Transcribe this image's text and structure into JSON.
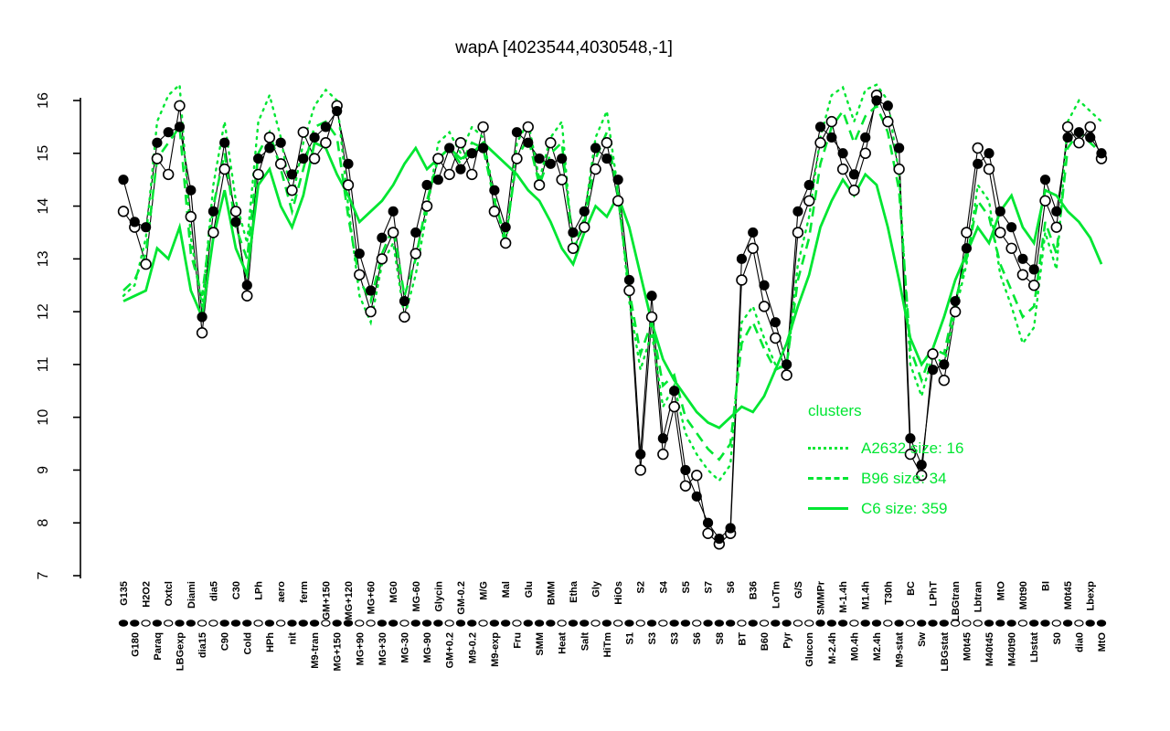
{
  "title": "wapA [4023544,4030548,-1]",
  "colors": {
    "cluster_green": "#00e632",
    "series_black": "#000000",
    "background": "#ffffff"
  },
  "legend": {
    "title": "clusters",
    "entries": [
      {
        "label": "A2632 size: 16",
        "style": "dotted"
      },
      {
        "label": "B96 size: 34",
        "style": "dashed"
      },
      {
        "label": "C6 size: 359",
        "style": "solid"
      }
    ]
  },
  "chart_data": {
    "type": "line",
    "title": "wapA [4023544,4030548,-1]",
    "xlabel": "",
    "ylabel": "",
    "ylim": [
      7,
      16
    ],
    "yticks": [
      7,
      8,
      9,
      10,
      11,
      12,
      13,
      14,
      15,
      16
    ],
    "grid": false,
    "legend_position": "right-middle",
    "categories": [
      "G135",
      "G180",
      "H2O2",
      "Paraq",
      "Oxtcl",
      "LBGexp",
      "Diami",
      "dia15",
      "dia5",
      "C90",
      "C30",
      "Cold",
      "LPh",
      "HPh",
      "aero",
      "nit",
      "ferm",
      "M9-tran",
      "GM+150",
      "MG+150",
      "MG+120",
      "MG+90",
      "MG+60",
      "MG+30",
      "MG0",
      "MG-30",
      "MG-60",
      "MG-90",
      "Glycin",
      "GM+0.2",
      "GM-0.2",
      "M9-0.2",
      "M/G",
      "M9-exp",
      "Mal",
      "Fru",
      "Glu",
      "SMM",
      "BMM",
      "Heat",
      "Etha",
      "Salt",
      "Gly",
      "HiTm",
      "HiOs",
      "S1",
      "S2",
      "S3",
      "S4",
      "S3",
      "S5",
      "S6",
      "S7",
      "S8",
      "S6",
      "BT",
      "B36",
      "B60",
      "LoTm",
      "Pyr",
      "G/S",
      "Glucon",
      "SMMPr",
      "M-2.4h",
      "M-1.4h",
      "M0.4h",
      "M1.4h",
      "M2.4h",
      "T30h",
      "M9-stat",
      "BC",
      "Sw",
      "LPhT",
      "LBGstat",
      "LBGtran",
      "M0t45",
      "Lbtran",
      "M40t45",
      "MtO",
      "M40t90",
      "M0t90",
      "Lbstat",
      "BI",
      "S0",
      "M0t45",
      "dia0",
      "Lbexp",
      "MtO"
    ],
    "axis_markers": "ffofoffoofffofofffoffooffofffoffoffofffoffofofofoffofffofoffoofffoffofofffooofffoffofoff",
    "series": [
      {
        "name": "wapA profile (filled points)",
        "marker": "filled-circle",
        "color": "#000000",
        "values": [
          14.5,
          13.7,
          13.6,
          15.2,
          15.4,
          15.5,
          14.3,
          11.9,
          13.9,
          15.2,
          13.7,
          12.5,
          14.9,
          15.1,
          15.2,
          14.6,
          14.9,
          15.3,
          15.5,
          15.8,
          14.8,
          13.1,
          12.4,
          13.4,
          13.9,
          12.2,
          13.5,
          14.4,
          14.5,
          15.1,
          14.7,
          15.0,
          15.1,
          14.3,
          13.6,
          15.4,
          15.2,
          14.9,
          14.8,
          14.9,
          13.5,
          13.9,
          15.1,
          14.9,
          14.5,
          12.6,
          9.3,
          12.3,
          9.6,
          10.5,
          9.0,
          8.5,
          8.0,
          7.7,
          7.9,
          13.0,
          13.5,
          12.5,
          11.8,
          11.0,
          13.9,
          14.4,
          15.5,
          15.3,
          15.0,
          14.6,
          15.3,
          16.0,
          15.9,
          15.1,
          9.6,
          9.1,
          10.9,
          11.0,
          12.2,
          13.2,
          14.8,
          15.0,
          13.9,
          13.6,
          13.0,
          12.8,
          14.5,
          13.9,
          15.3,
          15.4,
          15.3,
          15.0
        ]
      },
      {
        "name": "wapA profile (open points)",
        "marker": "open-circle",
        "color": "#000000",
        "values": [
          13.9,
          13.6,
          12.9,
          14.9,
          14.6,
          15.9,
          13.8,
          11.6,
          13.5,
          14.7,
          13.9,
          12.3,
          14.6,
          15.3,
          14.8,
          14.3,
          15.4,
          14.9,
          15.2,
          15.9,
          14.4,
          12.7,
          12.0,
          13.0,
          13.5,
          11.9,
          13.1,
          14.0,
          14.9,
          14.6,
          15.2,
          14.6,
          15.5,
          13.9,
          13.3,
          14.9,
          15.5,
          14.4,
          15.2,
          14.5,
          13.2,
          13.6,
          14.7,
          15.2,
          14.1,
          12.4,
          9.0,
          11.9,
          9.3,
          10.2,
          8.7,
          8.9,
          7.8,
          7.6,
          7.8,
          12.6,
          13.2,
          12.1,
          11.5,
          10.8,
          13.5,
          14.1,
          15.2,
          15.6,
          14.7,
          14.3,
          15.0,
          16.1,
          15.6,
          14.7,
          9.3,
          8.9,
          11.2,
          10.7,
          12.0,
          13.5,
          15.1,
          14.7,
          13.5,
          13.2,
          12.7,
          12.5,
          14.1,
          13.6,
          15.5,
          15.2,
          15.5,
          14.9
        ]
      },
      {
        "name": "cluster A2632 mean",
        "cluster_size": 16,
        "style": "dotted",
        "color": "#00e632",
        "values": [
          12.3,
          12.5,
          13.4,
          15.6,
          16.1,
          16.3,
          13.4,
          12.1,
          14.4,
          15.6,
          14.1,
          13.3,
          15.6,
          16.1,
          15.3,
          14.1,
          15.2,
          15.9,
          16.2,
          16.0,
          14.0,
          12.3,
          11.8,
          12.9,
          13.3,
          11.9,
          12.7,
          13.9,
          15.2,
          15.4,
          15.0,
          15.5,
          15.3,
          14.2,
          13.2,
          15.2,
          15.6,
          14.5,
          15.3,
          15.6,
          13.1,
          13.8,
          15.3,
          15.8,
          14.3,
          12.2,
          10.9,
          11.6,
          10.2,
          10.6,
          9.7,
          9.3,
          9.0,
          8.8,
          9.1,
          11.8,
          12.1,
          11.5,
          11.0,
          10.9,
          12.9,
          13.8,
          15.3,
          16.1,
          16.25,
          15.6,
          16.2,
          16.3,
          16.0,
          14.6,
          11.0,
          10.4,
          11.2,
          11.0,
          12.0,
          12.9,
          14.4,
          14.1,
          12.7,
          12.1,
          11.4,
          11.7,
          13.5,
          12.8,
          15.6,
          16.0,
          15.8,
          15.6
        ]
      },
      {
        "name": "cluster B96 mean",
        "cluster_size": 34,
        "style": "dashed",
        "color": "#00e632",
        "values": [
          12.4,
          12.6,
          13.1,
          14.9,
          15.2,
          15.5,
          13.1,
          12.3,
          14.0,
          15.0,
          13.6,
          13.0,
          15.0,
          15.4,
          14.7,
          13.9,
          14.7,
          15.5,
          15.6,
          15.3,
          13.8,
          12.6,
          12.2,
          13.1,
          13.6,
          12.3,
          13.0,
          14.1,
          14.9,
          15.1,
          14.8,
          15.2,
          15.1,
          14.1,
          13.4,
          14.9,
          15.3,
          14.4,
          15.0,
          15.2,
          13.2,
          13.7,
          14.9,
          15.4,
          14.2,
          12.4,
          11.2,
          11.8,
          10.6,
          10.8,
          10.0,
          9.7,
          9.4,
          9.2,
          9.5,
          11.4,
          11.8,
          11.3,
          10.9,
          11.0,
          12.6,
          13.4,
          14.8,
          15.5,
          15.8,
          15.2,
          15.7,
          15.9,
          15.4,
          14.3,
          11.3,
          10.7,
          11.3,
          11.2,
          12.2,
          13.0,
          14.1,
          13.8,
          12.9,
          12.4,
          11.9,
          12.1,
          13.7,
          13.1,
          15.1,
          15.4,
          15.2,
          15.0
        ]
      },
      {
        "name": "cluster C6 mean",
        "cluster_size": 359,
        "style": "solid",
        "color": "#00e632",
        "values": [
          12.2,
          12.3,
          12.4,
          13.2,
          13.0,
          13.6,
          12.4,
          11.9,
          13.4,
          14.3,
          13.2,
          12.7,
          14.4,
          14.7,
          14.0,
          13.6,
          14.2,
          15.2,
          15.1,
          14.6,
          14.2,
          13.7,
          13.9,
          14.1,
          14.4,
          14.8,
          15.1,
          14.7,
          14.9,
          15.1,
          14.9,
          15.0,
          15.2,
          15.0,
          14.8,
          14.6,
          14.3,
          14.1,
          13.7,
          13.2,
          12.9,
          13.5,
          14.0,
          13.8,
          14.2,
          13.6,
          12.7,
          11.8,
          11.1,
          10.7,
          10.4,
          10.1,
          9.9,
          9.8,
          10.0,
          10.2,
          10.1,
          10.4,
          10.9,
          11.4,
          12.1,
          12.7,
          13.6,
          14.1,
          14.5,
          14.2,
          14.6,
          14.4,
          13.6,
          12.6,
          11.5,
          11.0,
          11.3,
          11.9,
          12.6,
          13.1,
          13.6,
          13.3,
          13.9,
          14.2,
          13.6,
          13.3,
          14.3,
          14.2,
          13.9,
          13.7,
          13.4,
          12.9
        ]
      }
    ]
  }
}
